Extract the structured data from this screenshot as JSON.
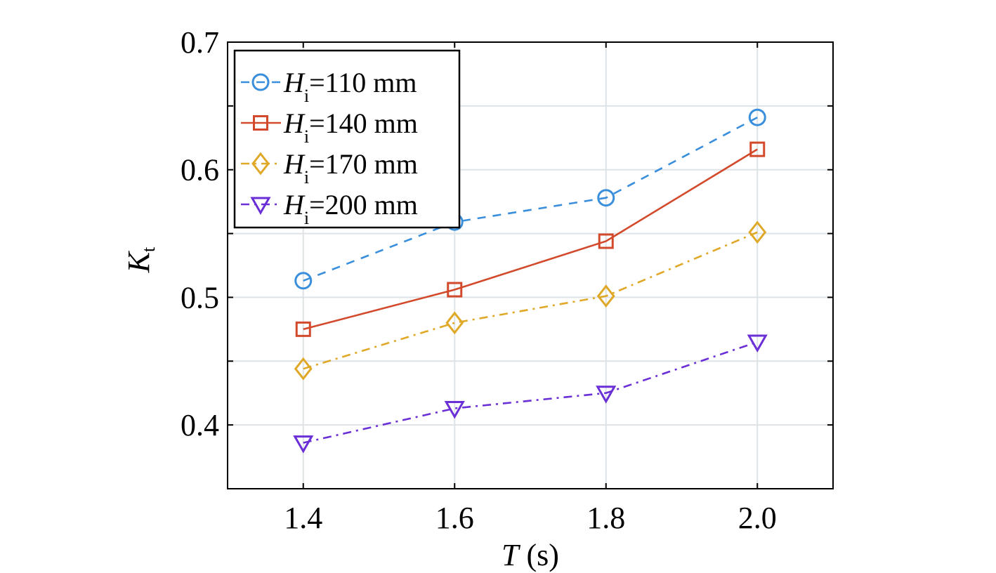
{
  "chart_data": {
    "type": "line",
    "title": "",
    "xlabel": {
      "var": "T",
      "unit": " (s)"
    },
    "ylabel": {
      "var": "K",
      "sub": "t"
    },
    "xlim": [
      1.3,
      2.1
    ],
    "ylim": [
      0.35,
      0.7
    ],
    "xticks": [
      1.4,
      1.6,
      1.8,
      2.0
    ],
    "xtick_labels": [
      "1.4",
      "1.6",
      "1.8",
      "2.0"
    ],
    "yticks": [
      0.4,
      0.5,
      0.6,
      0.7
    ],
    "ytick_labels": [
      "0.4",
      "0.5",
      "0.6",
      "0.7"
    ],
    "grid": true,
    "legend_position": "top-left",
    "x": [
      1.4,
      1.6,
      1.8,
      2.0
    ],
    "series": [
      {
        "name": {
          "var": "H",
          "sub": "i",
          "rest": "=110 mm"
        },
        "values": [
          0.513,
          0.559,
          0.578,
          0.641
        ],
        "color": "#3a8fdc",
        "marker": "circle",
        "dash": "dashed"
      },
      {
        "name": {
          "var": "H",
          "sub": "i",
          "rest": "=140 mm"
        },
        "values": [
          0.475,
          0.506,
          0.544,
          0.616
        ],
        "color": "#d24a2b",
        "marker": "square",
        "dash": "solid"
      },
      {
        "name": {
          "var": "H",
          "sub": "i",
          "rest": "=170 mm"
        },
        "values": [
          0.444,
          0.48,
          0.501,
          0.551
        ],
        "color": "#e0a827",
        "marker": "diamond",
        "dash": "dashdot"
      },
      {
        "name": {
          "var": "H",
          "sub": "i",
          "rest": "=200 mm"
        },
        "values": [
          0.386,
          0.413,
          0.425,
          0.465
        ],
        "color": "#6a2fd6",
        "marker": "triangle-down",
        "dash": "dashdot"
      }
    ]
  }
}
